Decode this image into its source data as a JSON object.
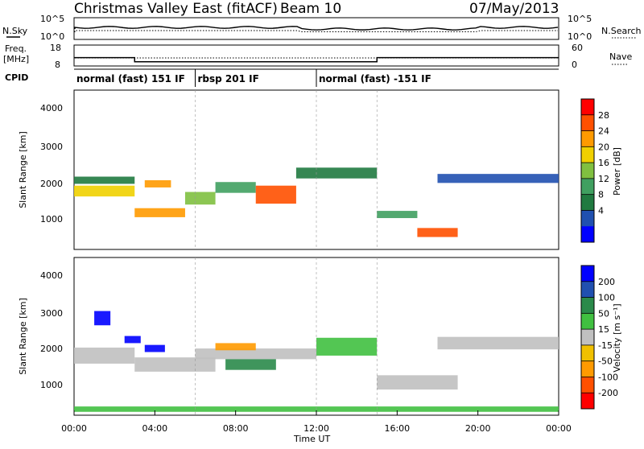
{
  "header": {
    "title": "Christmas Valley East (fitACF)",
    "beam": "Beam 10",
    "date": "07/May/2013"
  },
  "noise_panel": {
    "left_label": "N.Sky",
    "right_label": "N.Search",
    "left_ticks": [
      "10^5",
      "10^0"
    ],
    "right_ticks": [
      "10^5",
      "10^0"
    ]
  },
  "freq_panel": {
    "left_label_1": "Freq.",
    "left_label_2": "[MHz]",
    "right_label": "Nave",
    "left_ticks": [
      "18",
      "8"
    ],
    "right_ticks": [
      "60",
      "0"
    ]
  },
  "cpid_panel": {
    "label": "CPID",
    "modes": [
      {
        "start_hour": 0,
        "label": "normal (fast) 151 IF"
      },
      {
        "start_hour": 6,
        "label": "rbsp 201 IF"
      },
      {
        "start_hour": 12,
        "label": "normal (fast) -151 IF"
      }
    ]
  },
  "power_panel": {
    "ylabel": "Slant Range [km]",
    "yticks": [
      "4000",
      "3000",
      "2000",
      "1000"
    ],
    "colorbar_label": "Power [dB]",
    "colorbar_ticks": [
      "28",
      "24",
      "20",
      "16",
      "12",
      "8",
      "4"
    ],
    "colorbar_colors": [
      "#ff0000",
      "#ff5000",
      "#ff9a00",
      "#f0d000",
      "#80c040",
      "#40a060",
      "#207a40",
      "#2050b0",
      "#0000ff"
    ]
  },
  "velocity_panel": {
    "ylabel": "Slant Range [km]",
    "yticks": [
      "4000",
      "3000",
      "2000",
      "1000"
    ],
    "colorbar_label": "Velocity [m s⁻¹]",
    "colorbar_ticks": [
      "200",
      "100",
      "50",
      "15",
      "-15",
      "-50",
      "-100",
      "-200"
    ],
    "colorbar_colors": [
      "#0000ff",
      "#2050b0",
      "#2a8a4a",
      "#40c040",
      "#c0c0c0",
      "#f0c000",
      "#ff9a00",
      "#ff5000",
      "#ff0000"
    ]
  },
  "xaxis": {
    "label": "Time UT",
    "ticks": [
      "00:00",
      "04:00",
      "08:00",
      "12:00",
      "16:00",
      "20:00",
      "00:00"
    ]
  },
  "chart_data": {
    "type": "heatmap",
    "title": "Christmas Valley East (fitACF)",
    "subtitle": "Beam 10",
    "date": "07/May/2013",
    "xlabel": "Time UT",
    "ylabel": "Slant Range [km]",
    "xlim_hours": [
      0,
      24
    ],
    "ylim_km": [
      180,
      4600
    ],
    "frequency_mhz": [
      {
        "from_hour": 0,
        "to_hour": 3,
        "value": 12
      },
      {
        "from_hour": 3,
        "to_hour": 15,
        "value": 10
      },
      {
        "from_hour": 15,
        "to_hour": 24,
        "value": 12
      }
    ],
    "power_bands": [
      {
        "from_hour": 0.0,
        "to_hour": 3.0,
        "center_km": 1800,
        "thickness_km": 300,
        "level": 3
      },
      {
        "from_hour": 0.0,
        "to_hour": 3.0,
        "center_km": 2100,
        "thickness_km": 200,
        "level": 6
      },
      {
        "from_hour": 3.0,
        "to_hour": 5.5,
        "center_km": 1200,
        "thickness_km": 250,
        "level": 2
      },
      {
        "from_hour": 3.5,
        "to_hour": 4.8,
        "center_km": 2000,
        "thickness_km": 200,
        "level": 2
      },
      {
        "from_hour": 5.5,
        "to_hour": 7.0,
        "center_km": 1600,
        "thickness_km": 350,
        "level": 4
      },
      {
        "from_hour": 7.0,
        "to_hour": 9.0,
        "center_km": 1900,
        "thickness_km": 300,
        "level": 5
      },
      {
        "from_hour": 9.0,
        "to_hour": 11.0,
        "center_km": 1700,
        "thickness_km": 500,
        "level": 1
      },
      {
        "from_hour": 11.0,
        "to_hour": 15.0,
        "center_km": 2300,
        "thickness_km": 300,
        "level": 6
      },
      {
        "from_hour": 15.0,
        "to_hour": 17.0,
        "center_km": 1150,
        "thickness_km": 200,
        "level": 5
      },
      {
        "from_hour": 17.0,
        "to_hour": 19.0,
        "center_km": 650,
        "thickness_km": 250,
        "level": 1
      },
      {
        "from_hour": 18.0,
        "to_hour": 24.0,
        "center_km": 2150,
        "thickness_km": 250,
        "level": 7
      }
    ],
    "velocity_bands": [
      {
        "from_hour": 0.0,
        "to_hour": 3.0,
        "center_km": 1850,
        "thickness_km": 450,
        "level": 4
      },
      {
        "from_hour": 1.0,
        "to_hour": 1.8,
        "center_km": 2900,
        "thickness_km": 400,
        "level": 0
      },
      {
        "from_hour": 2.5,
        "to_hour": 3.3,
        "center_km": 2300,
        "thickness_km": 200,
        "level": 0
      },
      {
        "from_hour": 3.5,
        "to_hour": 4.5,
        "center_km": 2050,
        "thickness_km": 200,
        "level": 0
      },
      {
        "from_hour": 3.0,
        "to_hour": 7.0,
        "center_km": 1600,
        "thickness_km": 400,
        "level": 4
      },
      {
        "from_hour": 6.0,
        "to_hour": 12.0,
        "center_km": 1900,
        "thickness_km": 300,
        "level": 4
      },
      {
        "from_hour": 7.0,
        "to_hour": 9.0,
        "center_km": 2100,
        "thickness_km": 200,
        "level": 6
      },
      {
        "from_hour": 7.5,
        "to_hour": 10.0,
        "center_km": 1600,
        "thickness_km": 300,
        "level": 2
      },
      {
        "from_hour": 12.0,
        "to_hour": 15.0,
        "center_km": 2100,
        "thickness_km": 500,
        "level": 3
      },
      {
        "from_hour": 15.0,
        "to_hour": 19.0,
        "center_km": 1100,
        "thickness_km": 400,
        "level": 4
      },
      {
        "from_hour": 18.0,
        "to_hour": 24.0,
        "center_km": 2200,
        "thickness_km": 350,
        "level": 4
      },
      {
        "from_hour": 0.0,
        "to_hour": 24.0,
        "center_km": 350,
        "thickness_km": 150,
        "level": 3
      }
    ]
  }
}
